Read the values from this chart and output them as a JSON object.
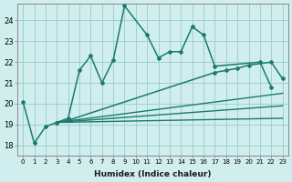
{
  "xlabel": "Humidex (Indice chaleur)",
  "bg_color": "#d0eeee",
  "grid_color": "#a0d0d0",
  "line_color": "#1a7a6e",
  "xlim": [
    -0.5,
    23.5
  ],
  "ylim": [
    17.5,
    24.8
  ],
  "yticks": [
    18,
    19,
    20,
    21,
    22,
    23,
    24
  ],
  "xticks": [
    0,
    1,
    2,
    3,
    4,
    5,
    6,
    7,
    8,
    9,
    10,
    11,
    12,
    13,
    14,
    15,
    16,
    17,
    18,
    19,
    20,
    21,
    22,
    23
  ],
  "series": [
    {
      "x": [
        0,
        1,
        2,
        3,
        4,
        5,
        6,
        7,
        8,
        9,
        11,
        12,
        13,
        14,
        15,
        16,
        17,
        21,
        22
      ],
      "y": [
        20.1,
        18.1,
        18.9,
        19.1,
        19.3,
        21.6,
        22.3,
        21.0,
        22.1,
        24.7,
        23.3,
        22.2,
        22.5,
        22.5,
        23.7,
        23.3,
        21.8,
        22.0,
        20.8
      ],
      "marker": "D",
      "markersize": 2.0,
      "linewidth": 1.1
    },
    {
      "x": [
        3,
        4,
        17,
        18,
        19,
        20,
        22,
        23
      ],
      "y": [
        19.1,
        19.2,
        21.5,
        21.6,
        21.7,
        21.85,
        22.0,
        21.2
      ],
      "marker": "D",
      "markersize": 2.0,
      "linewidth": 1.1
    },
    {
      "x": [
        3,
        23
      ],
      "y": [
        19.1,
        20.5
      ],
      "marker": null,
      "markersize": 0,
      "linewidth": 1.0
    },
    {
      "x": [
        3,
        23
      ],
      "y": [
        19.1,
        19.9
      ],
      "marker": null,
      "markersize": 0,
      "linewidth": 1.0
    },
    {
      "x": [
        3,
        23
      ],
      "y": [
        19.1,
        19.3
      ],
      "marker": null,
      "markersize": 0,
      "linewidth": 1.0
    }
  ]
}
